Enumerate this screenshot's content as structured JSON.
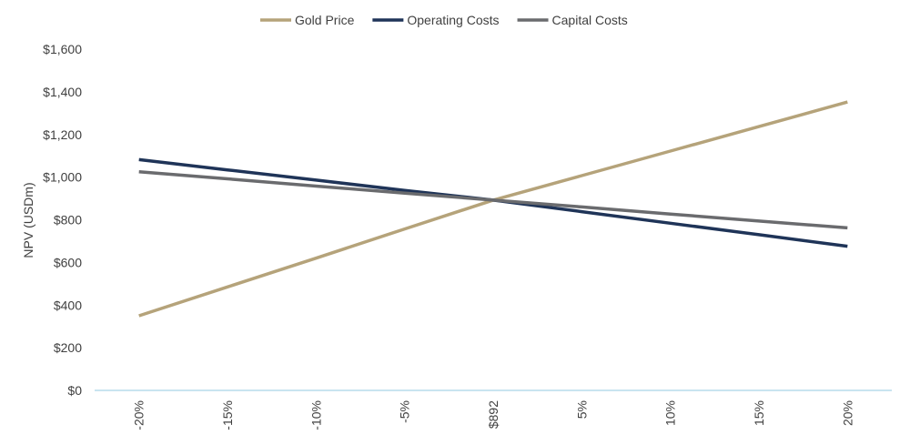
{
  "chart_data": {
    "type": "line",
    "title": "",
    "xlabel": "",
    "ylabel": "NPV (USDm)",
    "categories": [
      "-20%",
      "-15%",
      "-10%",
      "-5%",
      "$892",
      "5%",
      "10%",
      "15%",
      "20%"
    ],
    "ylim": [
      0,
      1600
    ],
    "yticks": [
      "$0",
      "$200",
      "$400",
      "$600",
      "$800",
      "$1,000",
      "$1,200",
      "$1,400",
      "$1,600"
    ],
    "grid": false,
    "legend_position": "top-center",
    "series": [
      {
        "name": "Gold Price",
        "color": "#B5A37A",
        "values": [
          350,
          485,
          620,
          757,
          892,
          1007,
          1122,
          1237,
          1352
        ]
      },
      {
        "name": "Operating Costs",
        "color": "#1F3458",
        "values": [
          1082,
          1034,
          986,
          938,
          892,
          838,
          784,
          730,
          676
        ]
      },
      {
        "name": "Capital Costs",
        "color": "#6A6B6E",
        "values": [
          1025,
          992,
          958,
          925,
          892,
          860,
          827,
          794,
          762
        ]
      }
    ]
  }
}
